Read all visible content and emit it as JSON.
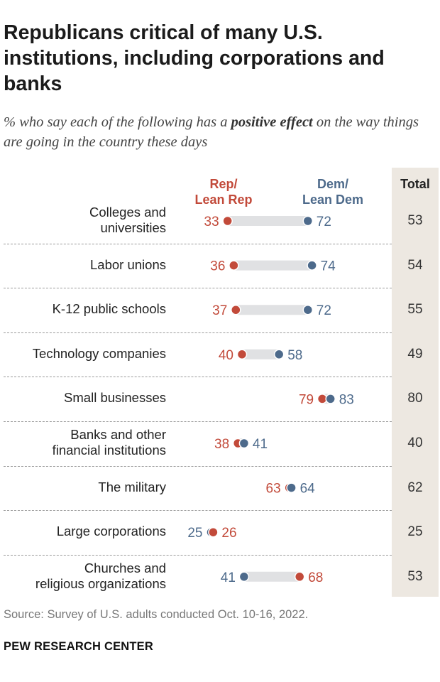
{
  "title": "Republicans critical of many U.S. institutions, including corporations and banks",
  "subtitle_prefix": "% who say each of the following has a ",
  "subtitle_bold": "positive effect",
  "subtitle_suffix": " on the way things are going in the country these days",
  "source": "Source: Survey of U.S. adults conducted Oct. 10-16, 2022.",
  "brand": "PEW RESEARCH CENTER",
  "colors": {
    "rep": "#c24a3a",
    "dem": "#4d6a8b",
    "connector": "#e0e1e3",
    "total_bg": "#ede8e1"
  },
  "chart_data": {
    "type": "dot",
    "series": [
      {
        "name": "Rep/ Lean Rep",
        "label_lines": [
          "Rep/",
          "Lean Rep"
        ]
      },
      {
        "name": "Dem/ Lean Dem",
        "label_lines": [
          "Dem/",
          "Lean Dem"
        ]
      }
    ],
    "total_label": "Total",
    "rows": [
      {
        "label_lines": [
          "Colleges and",
          "universities"
        ],
        "rep": 33,
        "dem": 72,
        "total": 53
      },
      {
        "label_lines": [
          "Labor unions"
        ],
        "rep": 36,
        "dem": 74,
        "total": 54
      },
      {
        "label_lines": [
          "K-12 public schools"
        ],
        "rep": 37,
        "dem": 72,
        "total": 55
      },
      {
        "label_lines": [
          "Technology companies"
        ],
        "rep": 40,
        "dem": 58,
        "total": 49
      },
      {
        "label_lines": [
          "Small businesses"
        ],
        "rep": 79,
        "dem": 83,
        "total": 80
      },
      {
        "label_lines": [
          "Banks and other",
          "financial institutions"
        ],
        "rep": 38,
        "dem": 41,
        "total": 40
      },
      {
        "label_lines": [
          "The military"
        ],
        "rep": 63,
        "dem": 64,
        "total": 62
      },
      {
        "label_lines": [
          "Large corporations"
        ],
        "rep": 26,
        "dem": 25,
        "total": 25
      },
      {
        "label_lines": [
          "Churches and",
          "religious organizations"
        ],
        "rep": 68,
        "dem": 41,
        "total": 53
      }
    ]
  }
}
